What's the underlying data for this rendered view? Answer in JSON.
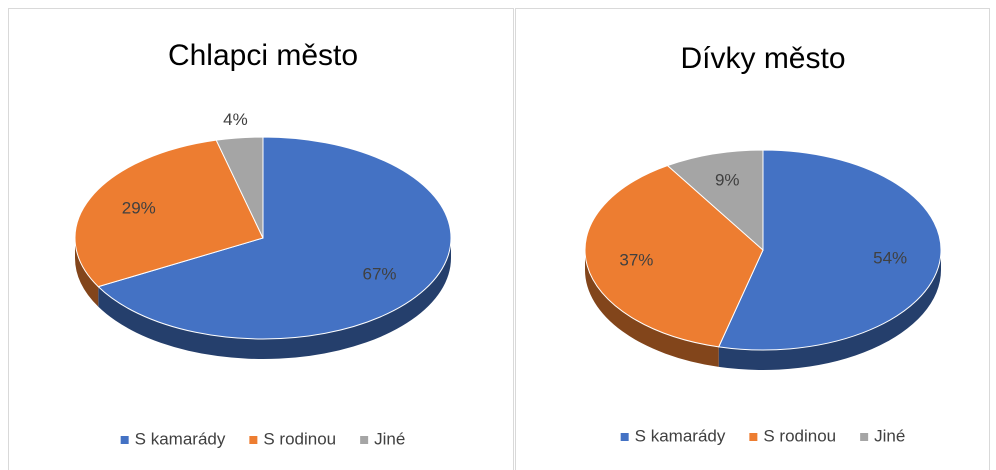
{
  "chart_data": [
    {
      "type": "pie",
      "title": "Chlapci město",
      "categories": [
        "S kamarády",
        "S rodinou",
        "Jiné"
      ],
      "values": [
        67,
        29,
        4
      ],
      "value_labels": [
        "67%",
        "29%",
        "4%"
      ],
      "colors": [
        "#4472c4",
        "#ed7d31",
        "#a5a5a5"
      ],
      "legend": "bottom"
    },
    {
      "type": "pie",
      "title": "Dívky město",
      "categories": [
        "S kamarády",
        "S rodinou",
        "Jiné"
      ],
      "values": [
        54,
        37,
        9
      ],
      "value_labels": [
        "54%",
        "37%",
        "9%"
      ],
      "colors": [
        "#4472c4",
        "#ed7d31",
        "#a5a5a5"
      ],
      "legend": "bottom"
    }
  ]
}
